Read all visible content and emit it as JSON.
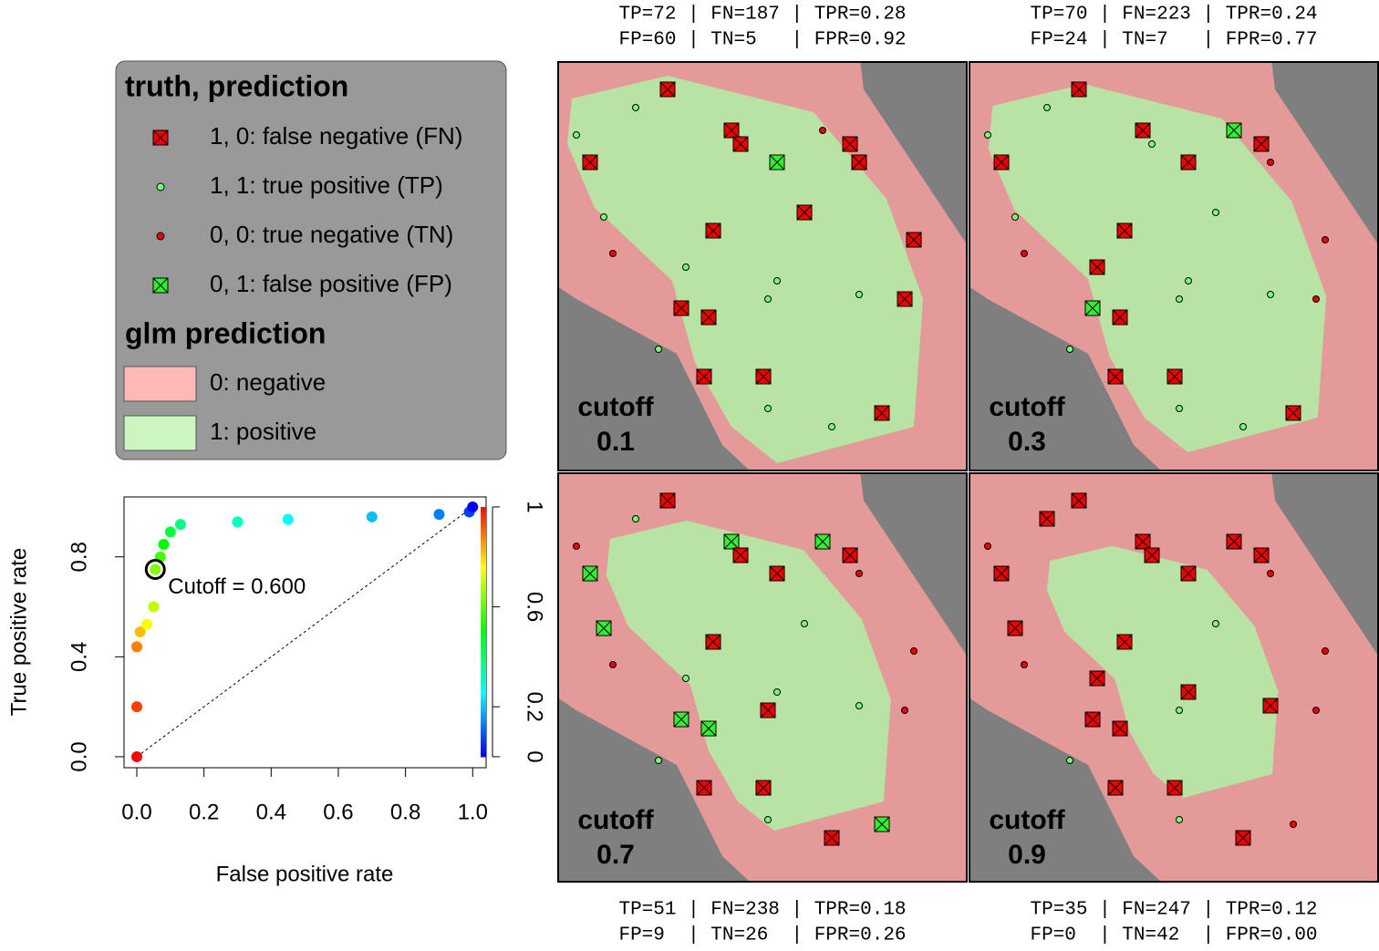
{
  "chart_data": {
    "type": "line",
    "x_label": "False positive rate",
    "y_label": "True positive rate",
    "x": [
      0,
      0,
      0,
      0.01,
      0.03,
      0.05,
      0.055,
      0.07,
      0.08,
      0.1,
      0.13,
      0.3,
      0.45,
      0.7,
      0.9,
      0.99,
      1
    ],
    "series": [
      {
        "values": [
          0,
          0.2,
          0.44,
          0.5,
          0.53,
          0.6,
          0.75,
          0.8,
          0.85,
          0.9,
          0.93,
          0.94,
          0.95,
          0.96,
          0.97,
          0.98,
          1
        ]
      }
    ],
    "xlim": [
      -0.038,
      1.04
    ],
    "ylim": [
      -0.044,
      1.04
    ],
    "xticks": [
      {
        "value": 0,
        "label": "0.0"
      },
      {
        "value": 0.2,
        "label": "0.2"
      },
      {
        "value": 0.4,
        "label": "0.4"
      },
      {
        "value": 0.6,
        "label": "0.6"
      },
      {
        "value": 0.8,
        "label": "0.8"
      },
      {
        "value": 1,
        "label": "1.0"
      }
    ],
    "yticks": [
      {
        "value": 0,
        "label": "0.0"
      },
      {
        "value": 0.4,
        "label": "0.4"
      },
      {
        "value": 0.8,
        "label": "0.8"
      }
    ],
    "annotation": {
      "text": "Cutoff = 0.600",
      "x": 0.055,
      "y": 0.75
    },
    "colorbar": {
      "colors": [
        "#0000ff",
        "#00ffff",
        "#00ff00",
        "#ffff00",
        "#ff0000"
      ],
      "lim": [
        0,
        1
      ],
      "ticks": [
        0,
        0.2,
        0.6,
        1
      ]
    }
  },
  "legend": {
    "title": "truth, prediction",
    "items": [
      "1, 0: false negative (FN)",
      "1, 1: true positive (TP)",
      "0, 0: true negative (TN)",
      "0, 1: false positive (FP)"
    ],
    "fill_title": "glm prediction",
    "fill_items": [
      "0: negative",
      "1: positive"
    ]
  },
  "panels": [
    {
      "label": "cutoff",
      "cutoff": "0.1",
      "stats": [
        "TP=72 | FN=187 | TPR=0.28",
        "FP=60 | TN=5   | FPR=0.92"
      ]
    },
    {
      "label": "cutoff",
      "cutoff": "0.3",
      "stats": [
        "TP=70 | FN=223 | TPR=0.24",
        "FP=24 | TN=7   | FPR=0.77"
      ]
    },
    {
      "label": "cutoff",
      "cutoff": "0.7",
      "stats": [
        "TP=51 | FN=238 | TPR=0.18",
        "FP=9  | TN=26  | FPR=0.26"
      ]
    },
    {
      "label": "cutoff",
      "cutoff": "0.9",
      "stats": [
        "TP=35 | FN=247 | TPR=0.12",
        "FP=0  | TN=42  | FPR=0.00"
      ]
    }
  ]
}
